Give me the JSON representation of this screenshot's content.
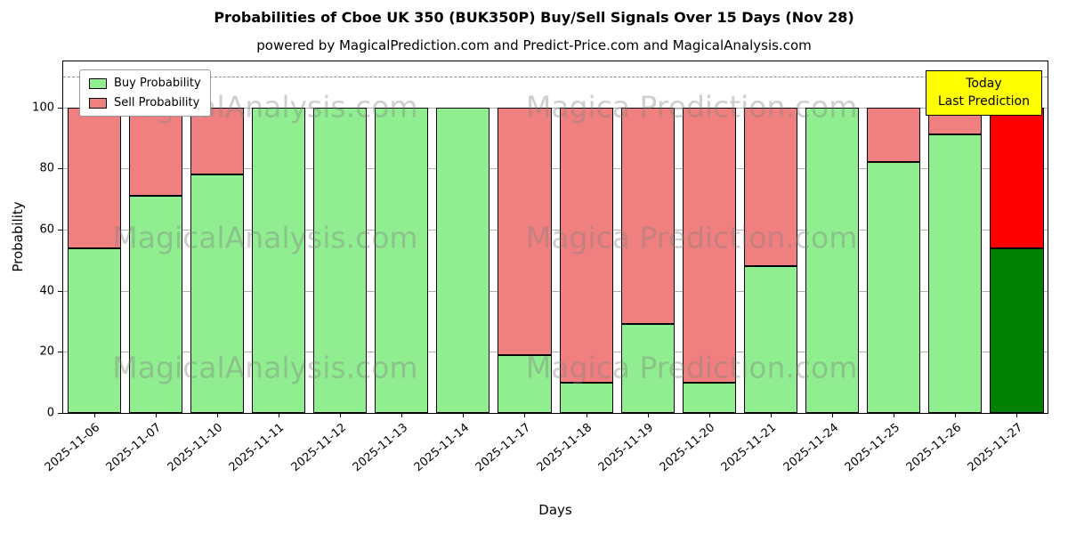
{
  "chart_data": {
    "type": "bar",
    "stacked": true,
    "title": "Probabilities of Cboe UK 350 (BUK350P) Buy/Sell Signals Over 15 Days (Nov 28)",
    "subtitle": "powered by MagicalPrediction.com and Predict-Price.com and MagicalAnalysis.com",
    "xlabel": "Days",
    "ylabel": "Probability",
    "ylim": [
      0,
      115
    ],
    "yticks": [
      0,
      20,
      40,
      60,
      80,
      100
    ],
    "dashed_guide_y": 110,
    "grid": "horizontal",
    "legend_position": "upper left",
    "categories": [
      "2025-11-06",
      "2025-11-07",
      "2025-11-10",
      "2025-11-11",
      "2025-11-12",
      "2025-11-13",
      "2025-11-14",
      "2025-11-17",
      "2025-11-18",
      "2025-11-19",
      "2025-11-20",
      "2025-11-21",
      "2025-11-24",
      "2025-11-25",
      "2025-11-26",
      "2025-11-27"
    ],
    "series": [
      {
        "name": "Buy Probability",
        "color": "#90EE90",
        "today_color": "#008000",
        "values": [
          54,
          71,
          78,
          100,
          100,
          100,
          100,
          19,
          10,
          29,
          10,
          48,
          100,
          82,
          91,
          54
        ]
      },
      {
        "name": "Sell Probability",
        "color": "#F08080",
        "today_color": "#FF0000",
        "values": [
          46,
          29,
          22,
          0,
          0,
          0,
          0,
          81,
          90,
          71,
          90,
          52,
          0,
          18,
          9,
          46
        ]
      }
    ],
    "bar_edge_color": "#000000",
    "today_index": 15
  },
  "annotation": {
    "line1": "Today",
    "line2": "Last Prediction",
    "bg_color": "#FFFF00"
  },
  "watermarks": [
    "MagicalAnalysis.com",
    "Magica Prediction.com"
  ]
}
